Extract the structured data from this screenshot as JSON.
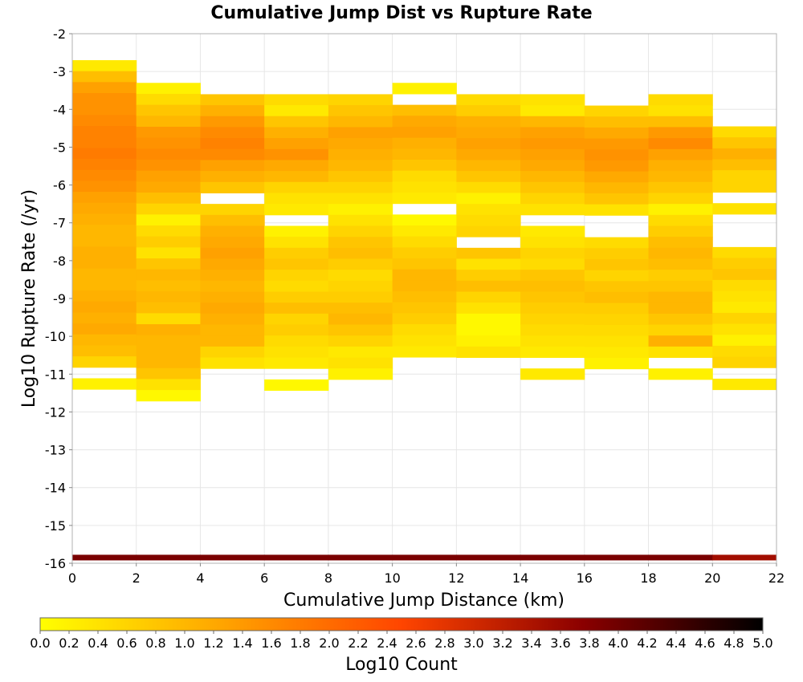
{
  "chart_data": {
    "type": "heatmap",
    "title": "Cumulative Jump Dist vs Rupture Rate",
    "xlabel": "Cumulative Jump Distance (km)",
    "ylabel": "Log10 Rupture Rate (/yr)",
    "colorbar_label": "Log10 Count",
    "xlim": [
      0,
      22
    ],
    "ylim": [
      -16,
      -2
    ],
    "x_ticks": [
      "0",
      "2",
      "4",
      "6",
      "8",
      "10",
      "12",
      "14",
      "16",
      "18",
      "20",
      "22"
    ],
    "y_ticks": [
      "-2",
      "-3",
      "-4",
      "-5",
      "-6",
      "-7",
      "-8",
      "-9",
      "-10",
      "-11",
      "-12",
      "-13",
      "-14",
      "-15",
      "-16"
    ],
    "colorbar_ticks": [
      "0.0",
      "0.2",
      "0.4",
      "0.6",
      "0.8",
      "1.0",
      "1.2",
      "1.4",
      "1.6",
      "1.8",
      "2.0",
      "2.2",
      "2.4",
      "2.6",
      "2.8",
      "3.0",
      "3.2",
      "3.4",
      "3.6",
      "3.8",
      "4.0",
      "4.2",
      "4.4",
      "4.6",
      "4.8",
      "5.0"
    ],
    "colorbar_range": [
      0,
      5
    ],
    "x_bin_width": 2,
    "y_bin_height": 0.29,
    "grid": true,
    "legend": "colorbar-bottom",
    "color_stops": [
      "#ffff00",
      "#ffa500",
      "#ff4500",
      "#8b0000",
      "#000000"
    ],
    "columns": [
      {
        "x0": 0,
        "y_top": -2.7,
        "values": [
          0.3,
          0.9,
          1.3,
          1.5,
          1.5,
          1.6,
          1.7,
          1.7,
          1.8,
          1.7,
          1.6,
          1.5,
          1.3,
          1.2,
          1.1,
          1.0,
          1.0,
          1.1,
          1.1,
          1.0,
          1.0,
          1.1,
          1.2,
          1.1,
          1.2,
          1.0,
          0.9,
          0.6,
          null,
          0.2
        ]
      },
      {
        "x0": 2,
        "y_top": -3.3,
        "values": [
          0.2,
          0.5,
          0.8,
          1.0,
          1.4,
          1.5,
          1.6,
          1.5,
          1.3,
          1.2,
          0.9,
          0.6,
          0.2,
          0.5,
          0.7,
          0.4,
          0.8,
          1.0,
          0.9,
          1.0,
          0.9,
          0.5,
          1.1,
          1.0,
          1.0,
          1.0,
          0.8,
          0.4,
          0.1
        ]
      },
      {
        "x0": 4,
        "y_top": -3.6,
        "values": [
          0.8,
          1.1,
          1.4,
          1.6,
          1.7,
          1.6,
          1.3,
          1.1,
          0.8,
          null,
          0.6,
          0.9,
          1.1,
          1.2,
          1.3,
          1.2,
          1.1,
          1.0,
          1.1,
          1.2,
          1.1,
          1.0,
          1.0,
          0.6,
          0.4
        ]
      },
      {
        "x0": 6,
        "y_top": -3.6,
        "values": [
          0.5,
          0.3,
          0.8,
          1.1,
          1.3,
          1.5,
          1.2,
          1.0,
          0.6,
          0.4,
          0.3,
          null,
          0.2,
          0.4,
          0.7,
          0.8,
          0.6,
          0.5,
          0.7,
          0.9,
          0.6,
          0.7,
          0.5,
          0.4,
          0.3,
          null,
          0.1
        ]
      },
      {
        "x0": 8,
        "y_top": -3.6,
        "values": [
          0.6,
          0.8,
          1.0,
          1.3,
          1.2,
          1.1,
          1.0,
          0.8,
          0.6,
          0.4,
          0.2,
          0.4,
          0.6,
          0.8,
          0.9,
          0.7,
          0.5,
          0.6,
          0.7,
          0.9,
          1.0,
          0.8,
          0.6,
          0.3,
          0.4,
          0.2
        ]
      },
      {
        "x0": 10,
        "y_top": -3.3,
        "values": [
          0.2,
          null,
          0.9,
          1.2,
          1.3,
          1.1,
          1.0,
          0.8,
          0.5,
          0.4,
          0.3,
          null,
          0.1,
          0.3,
          0.5,
          0.7,
          0.8,
          1.0,
          1.0,
          0.9,
          0.8,
          0.7,
          0.5,
          0.4,
          0.3
        ]
      },
      {
        "x0": 12,
        "y_top": -3.6,
        "values": [
          0.5,
          0.7,
          1.1,
          1.2,
          1.3,
          1.2,
          1.0,
          0.8,
          0.5,
          0.2,
          0.4,
          0.5,
          0.6,
          null,
          0.8,
          0.4,
          0.7,
          0.9,
          0.6,
          0.4,
          0.1,
          0.1,
          0.2,
          0.4
        ]
      },
      {
        "x0": 14,
        "y_top": -3.6,
        "values": [
          0.4,
          0.3,
          1.0,
          1.3,
          1.4,
          1.3,
          1.2,
          1.0,
          0.8,
          0.6,
          0.4,
          null,
          0.3,
          0.4,
          0.6,
          0.5,
          0.8,
          0.9,
          0.8,
          0.7,
          0.6,
          0.5,
          0.4,
          0.3,
          null,
          0.3
        ]
      },
      {
        "x0": 16,
        "y_top": -3.9,
        "values": [
          0.6,
          0.9,
          1.2,
          1.4,
          1.5,
          1.4,
          1.2,
          1.0,
          0.8,
          0.4,
          null,
          null,
          0.5,
          0.7,
          0.8,
          0.6,
          0.8,
          0.9,
          0.7,
          0.6,
          0.5,
          0.4,
          0.3,
          0.2
        ]
      },
      {
        "x0": 18,
        "y_top": -3.6,
        "values": [
          0.5,
          0.4,
          0.9,
          1.4,
          1.6,
          1.3,
          1.1,
          1.0,
          0.8,
          0.6,
          0.2,
          0.5,
          0.7,
          0.9,
          1.0,
          0.9,
          0.7,
          0.8,
          1.0,
          1.0,
          0.8,
          0.6,
          1.1,
          0.4,
          null,
          0.2
        ]
      },
      {
        "x0": 20,
        "y_top": -4.45,
        "values": [
          0.5,
          0.8,
          1.1,
          0.9,
          0.6,
          0.6,
          null,
          0.4,
          null,
          null,
          null,
          0.5,
          0.7,
          0.8,
          0.5,
          0.4,
          0.3,
          0.6,
          0.4,
          0.2,
          0.5,
          0.6,
          null,
          0.3
        ]
      }
    ],
    "bottom_strip": {
      "y_center": -15.85,
      "values": [
        3.9,
        3.9,
        3.9,
        3.9,
        3.9,
        3.9,
        3.9,
        3.9,
        3.9,
        3.9,
        3.5
      ]
    }
  }
}
